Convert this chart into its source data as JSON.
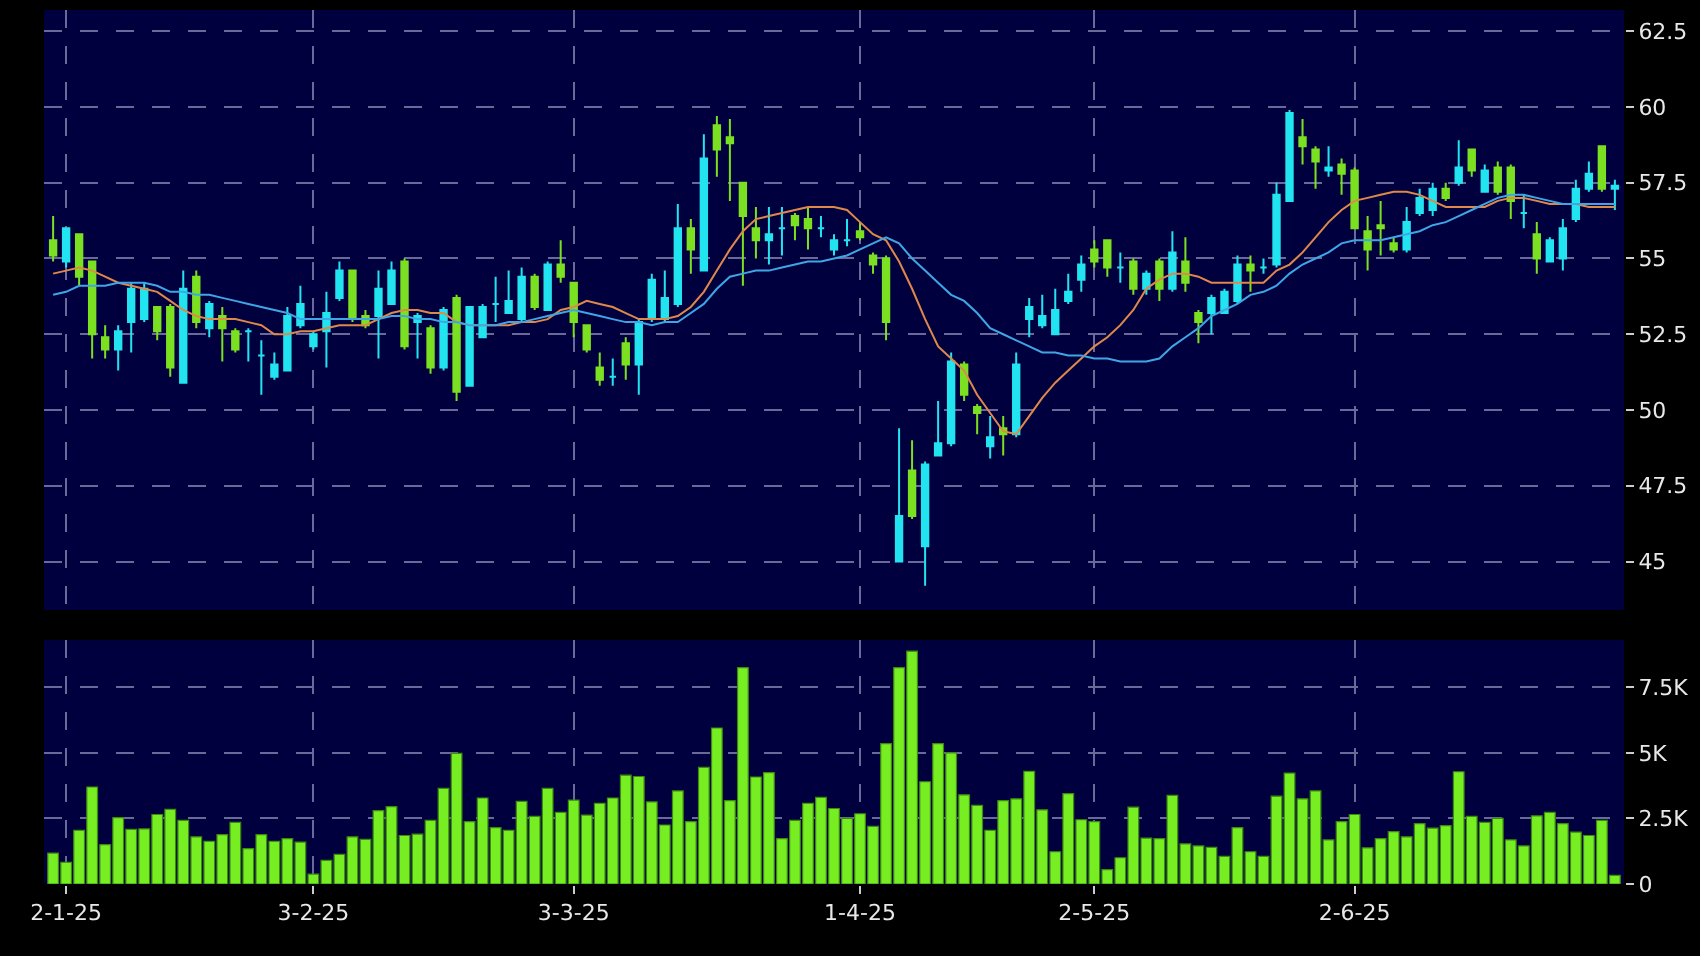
{
  "chart_data": [
    {
      "type": "candlestick",
      "categories": [
        null,
        null,
        null,
        null,
        null,
        null,
        null,
        null,
        null,
        null,
        null,
        null,
        null,
        null,
        null,
        null,
        null,
        null,
        null,
        null,
        null,
        null,
        null,
        null,
        null,
        null,
        null,
        null,
        null,
        null,
        null,
        null,
        null,
        null,
        null,
        null,
        null,
        null,
        null,
        null,
        null,
        null,
        null,
        null,
        null,
        null,
        null,
        null,
        null,
        null,
        null,
        null,
        null,
        null,
        null,
        null,
        null,
        null,
        null,
        null,
        null,
        null,
        null,
        null,
        null,
        null,
        null,
        null,
        null,
        null,
        null,
        null,
        null,
        null,
        null,
        null,
        null,
        null,
        null,
        null,
        null,
        null,
        null,
        null,
        null,
        null,
        null,
        null,
        null,
        null,
        null,
        null,
        null,
        null,
        null,
        null,
        null,
        null,
        null,
        null,
        null,
        null,
        null,
        null,
        null,
        null,
        null,
        null,
        null,
        null,
        null,
        null,
        null,
        null,
        null,
        null,
        null,
        null,
        null,
        null,
        null
      ],
      "ohlc": [
        [
          55.6,
          56.4,
          54.9,
          55.1
        ],
        [
          54.9,
          56.0,
          54.7,
          56.0
        ],
        [
          55.8,
          55.8,
          54.1,
          54.4
        ],
        [
          54.9,
          54.9,
          51.7,
          52.5
        ],
        [
          52.4,
          52.8,
          51.7,
          52.0
        ],
        [
          52.0,
          52.8,
          51.3,
          52.6
        ],
        [
          52.9,
          54.2,
          51.9,
          54.0
        ],
        [
          53.0,
          54.2,
          52.9,
          54.0
        ],
        [
          53.4,
          53.4,
          52.3,
          52.6
        ],
        [
          53.4,
          53.5,
          51.1,
          51.4
        ],
        [
          50.9,
          54.6,
          50.9,
          54.0
        ],
        [
          54.4,
          54.6,
          52.7,
          52.9
        ],
        [
          52.7,
          53.6,
          52.4,
          53.5
        ],
        [
          53.1,
          53.4,
          51.6,
          52.7
        ],
        [
          52.6,
          52.7,
          51.9,
          52.0
        ],
        [
          52.6,
          52.7,
          51.6,
          52.6
        ],
        [
          51.8,
          52.3,
          50.5,
          51.8
        ],
        [
          51.1,
          51.9,
          51.0,
          51.5
        ],
        [
          51.3,
          53.4,
          51.3,
          53.1
        ],
        [
          52.8,
          54.1,
          52.7,
          53.5
        ],
        [
          52.1,
          52.6,
          52.0,
          52.5
        ],
        [
          52.6,
          53.9,
          51.4,
          53.2
        ],
        [
          53.7,
          54.9,
          53.6,
          54.6
        ],
        [
          54.6,
          54.6,
          52.9,
          53.0
        ],
        [
          53.1,
          53.3,
          52.7,
          52.8
        ],
        [
          53.1,
          54.6,
          51.7,
          54.0
        ],
        [
          53.5,
          54.9,
          53.5,
          54.6
        ],
        [
          54.9,
          55.0,
          52.0,
          52.1
        ],
        [
          52.9,
          53.2,
          51.7,
          53.1
        ],
        [
          52.7,
          52.8,
          51.2,
          51.4
        ],
        [
          51.4,
          53.4,
          51.3,
          53.3
        ],
        [
          53.7,
          53.8,
          50.3,
          50.6
        ],
        [
          50.8,
          53.4,
          50.8,
          53.4
        ],
        [
          52.4,
          53.5,
          52.4,
          53.4
        ],
        [
          53.5,
          54.4,
          52.9,
          53.5
        ],
        [
          53.2,
          54.6,
          53.2,
          53.6
        ],
        [
          53.0,
          54.7,
          52.9,
          54.4
        ],
        [
          54.4,
          54.5,
          53.3,
          53.4
        ],
        [
          53.3,
          54.9,
          53.3,
          54.8
        ],
        [
          54.8,
          55.6,
          54.2,
          54.4
        ],
        [
          54.2,
          54.2,
          52.4,
          52.9
        ],
        [
          52.8,
          52.8,
          51.9,
          52.0
        ],
        [
          51.4,
          51.9,
          50.8,
          51.0
        ],
        [
          51.1,
          51.7,
          50.8,
          51.1
        ],
        [
          52.2,
          52.4,
          51.0,
          51.5
        ],
        [
          51.5,
          53.0,
          50.5,
          52.9
        ],
        [
          53.0,
          54.5,
          52.9,
          54.3
        ],
        [
          53.0,
          54.6,
          52.9,
          53.7
        ],
        [
          53.5,
          56.8,
          53.4,
          56.0
        ],
        [
          56.0,
          56.3,
          54.5,
          55.3
        ],
        [
          54.6,
          59.1,
          54.6,
          58.3
        ],
        [
          59.4,
          59.7,
          57.7,
          58.6
        ],
        [
          59.0,
          59.6,
          56.9,
          58.8
        ],
        [
          57.5,
          57.5,
          54.1,
          56.4
        ],
        [
          56.0,
          56.7,
          55.0,
          55.6
        ],
        [
          55.6,
          56.7,
          54.8,
          55.8
        ],
        [
          56.0,
          56.7,
          55.1,
          56.0
        ],
        [
          56.4,
          56.5,
          55.6,
          56.1
        ],
        [
          56.3,
          56.7,
          55.3,
          56.0
        ],
        [
          56.0,
          56.4,
          55.7,
          56.0
        ],
        [
          55.3,
          55.8,
          55.1,
          55.6
        ],
        [
          55.6,
          56.3,
          55.4,
          55.6
        ],
        [
          55.9,
          56.2,
          55.6,
          55.7
        ],
        [
          55.1,
          55.2,
          54.5,
          54.8
        ],
        [
          55.0,
          55.1,
          52.3,
          52.9
        ],
        [
          45.0,
          49.4,
          45.0,
          46.5
        ],
        [
          48.0,
          49.0,
          46.4,
          46.5
        ],
        [
          45.5,
          48.3,
          44.2,
          48.2
        ],
        [
          48.5,
          50.3,
          48.5,
          48.9
        ],
        [
          48.9,
          51.9,
          48.8,
          51.6
        ],
        [
          51.5,
          51.6,
          50.3,
          50.5
        ],
        [
          50.1,
          50.2,
          49.2,
          49.9
        ],
        [
          48.8,
          49.8,
          48.4,
          49.1
        ],
        [
          49.4,
          49.8,
          48.5,
          49.2
        ],
        [
          49.2,
          51.9,
          49.1,
          51.5
        ],
        [
          53.0,
          53.7,
          52.4,
          53.4
        ],
        [
          52.8,
          53.8,
          52.7,
          53.1
        ],
        [
          52.5,
          54.0,
          52.5,
          53.3
        ],
        [
          53.6,
          54.5,
          53.5,
          53.9
        ],
        [
          54.3,
          55.1,
          53.9,
          54.8
        ],
        [
          55.3,
          55.6,
          54.7,
          54.9
        ],
        [
          55.6,
          55.6,
          54.4,
          54.7
        ],
        [
          54.7,
          55.2,
          54.2,
          54.7
        ],
        [
          54.9,
          55.0,
          53.8,
          54.0
        ],
        [
          54.0,
          54.6,
          53.8,
          54.5
        ],
        [
          54.9,
          55.0,
          53.6,
          54.0
        ],
        [
          54.0,
          55.9,
          53.9,
          55.2
        ],
        [
          54.9,
          55.7,
          53.9,
          54.2
        ],
        [
          53.2,
          53.3,
          52.2,
          52.9
        ],
        [
          53.2,
          53.8,
          52.5,
          53.7
        ],
        [
          53.2,
          54.0,
          53.2,
          53.9
        ],
        [
          53.6,
          55.1,
          53.5,
          54.8
        ],
        [
          54.8,
          55.1,
          53.9,
          54.6
        ],
        [
          54.7,
          55.0,
          54.5,
          54.7
        ],
        [
          54.8,
          57.5,
          54.7,
          57.1
        ],
        [
          56.9,
          59.9,
          56.9,
          59.8
        ],
        [
          59.0,
          59.6,
          58.1,
          58.7
        ],
        [
          58.6,
          58.7,
          57.3,
          58.2
        ],
        [
          57.9,
          58.7,
          57.7,
          58.0
        ],
        [
          58.1,
          58.3,
          57.1,
          57.8
        ],
        [
          57.9,
          58.0,
          56.0,
          56.0
        ],
        [
          55.9,
          56.4,
          54.6,
          55.3
        ],
        [
          56.1,
          56.9,
          55.1,
          56.0
        ],
        [
          55.5,
          55.7,
          55.2,
          55.3
        ],
        [
          55.3,
          56.7,
          55.2,
          56.2
        ],
        [
          56.5,
          57.3,
          56.4,
          57.0
        ],
        [
          56.6,
          57.5,
          56.4,
          57.3
        ],
        [
          57.3,
          57.5,
          56.9,
          57.0
        ],
        [
          57.5,
          58.9,
          57.4,
          58.0
        ],
        [
          58.6,
          58.6,
          57.7,
          57.9
        ],
        [
          57.2,
          58.1,
          57.2,
          57.9
        ],
        [
          58.0,
          58.2,
          57.1,
          57.2
        ],
        [
          58.0,
          58.1,
          56.3,
          56.9
        ],
        [
          56.5,
          57.1,
          56.0,
          56.5
        ],
        [
          55.8,
          56.2,
          54.5,
          55.0
        ],
        [
          54.9,
          55.7,
          54.9,
          55.6
        ],
        [
          55.0,
          56.3,
          54.6,
          56.0
        ],
        [
          56.3,
          57.6,
          56.2,
          57.3
        ],
        [
          57.3,
          58.2,
          57.2,
          57.8
        ],
        [
          58.7,
          58.7,
          57.2,
          57.3
        ],
        [
          57.3,
          57.6,
          56.6,
          57.4
        ]
      ],
      "colors": [
        "#7be021",
        "#22e4f0",
        "#7be021",
        "#7be021",
        "#7be021",
        "#22e4f0",
        "#22e4f0",
        "#22e4f0",
        "#7be021",
        "#7be021",
        "#22e4f0",
        "#7be021",
        "#22e4f0",
        "#7be021",
        "#7be021",
        "#22e4f0",
        "#22e4f0",
        "#22e4f0",
        "#22e4f0",
        "#22e4f0",
        "#22e4f0",
        "#22e4f0",
        "#22e4f0",
        "#7be021",
        "#7be021",
        "#22e4f0",
        "#22e4f0",
        "#7be021",
        "#22e4f0",
        "#7be021",
        "#22e4f0",
        "#7be021",
        "#22e4f0",
        "#22e4f0",
        "#22e4f0",
        "#22e4f0",
        "#22e4f0",
        "#7be021",
        "#22e4f0",
        "#7be021",
        "#7be021",
        "#7be021",
        "#7be021",
        "#22e4f0",
        "#7be021",
        "#22e4f0",
        "#22e4f0",
        "#22e4f0",
        "#22e4f0",
        "#7be021",
        "#22e4f0",
        "#7be021",
        "#7be021",
        "#7be021",
        "#7be021",
        "#22e4f0",
        "#22e4f0",
        "#7be021",
        "#7be021",
        "#22e4f0",
        "#22e4f0",
        "#22e4f0",
        "#7be021",
        "#7be021",
        "#7be021",
        "#22e4f0",
        "#7be021",
        "#22e4f0",
        "#22e4f0",
        "#22e4f0",
        "#7be021",
        "#7be021",
        "#22e4f0",
        "#7be021",
        "#22e4f0",
        "#22e4f0",
        "#22e4f0",
        "#22e4f0",
        "#22e4f0",
        "#22e4f0",
        "#7be021",
        "#7be021",
        "#22e4f0",
        "#7be021",
        "#22e4f0",
        "#7be021",
        "#22e4f0",
        "#7be021",
        "#7be021",
        "#22e4f0",
        "#22e4f0",
        "#22e4f0",
        "#7be021",
        "#22e4f0",
        "#22e4f0",
        "#22e4f0",
        "#7be021",
        "#7be021",
        "#22e4f0",
        "#7be021",
        "#7be021",
        "#7be021",
        "#7be021",
        "#7be021",
        "#22e4f0",
        "#22e4f0",
        "#22e4f0",
        "#7be021",
        "#22e4f0",
        "#7be021",
        "#22e4f0",
        "#7be021",
        "#7be021",
        "#22e4f0",
        "#7be021",
        "#22e4f0",
        "#22e4f0",
        "#22e4f0",
        "#22e4f0",
        "#7be021",
        "#22e4f0"
      ],
      "series": [
        {
          "type": "line",
          "color": "#e0884a",
          "values": [
            54.5,
            54.6,
            54.7,
            54.6,
            54.4,
            54.2,
            54.1,
            54.0,
            53.9,
            53.6,
            53.3,
            53.1,
            53.0,
            53.0,
            53.0,
            52.9,
            52.8,
            52.5,
            52.5,
            52.6,
            52.6,
            52.7,
            52.8,
            52.8,
            52.8,
            53.0,
            53.2,
            53.3,
            53.3,
            53.2,
            53.2,
            52.9,
            52.8,
            52.8,
            52.8,
            52.8,
            52.9,
            52.9,
            53.0,
            53.3,
            53.4,
            53.6,
            53.5,
            53.4,
            53.2,
            53.0,
            53.0,
            53.0,
            53.1,
            53.4,
            53.9,
            54.6,
            55.3,
            55.9,
            56.3,
            56.4,
            56.5,
            56.6,
            56.7,
            56.7,
            56.7,
            56.6,
            56.2,
            55.8,
            55.6,
            54.9,
            54.0,
            53.0,
            52.1,
            51.7,
            51.3,
            50.5,
            49.9,
            49.3,
            49.2,
            49.8,
            50.4,
            50.9,
            51.3,
            51.7,
            52.1,
            52.4,
            52.8,
            53.3,
            54.0,
            54.3,
            54.5,
            54.5,
            54.4,
            54.2,
            54.2,
            54.2,
            54.2,
            54.2,
            54.6,
            54.8,
            55.2,
            55.7,
            56.2,
            56.6,
            56.9,
            57.0,
            57.1,
            57.2,
            57.2,
            57.1,
            56.9,
            56.7,
            56.7,
            56.7,
            56.7,
            56.9,
            57.0,
            57.0,
            56.9,
            56.8,
            56.8,
            56.8,
            56.7,
            56.7,
            56.7
          ]
        },
        {
          "type": "line",
          "color": "#3fa6e6",
          "values": [
            53.8,
            53.9,
            54.1,
            54.1,
            54.1,
            54.2,
            54.2,
            54.2,
            54.1,
            53.9,
            53.9,
            53.8,
            53.8,
            53.7,
            53.6,
            53.5,
            53.4,
            53.3,
            53.2,
            53.0,
            53.0,
            53.0,
            53.0,
            53.0,
            53.0,
            53.0,
            53.1,
            53.1,
            53.0,
            53.0,
            52.9,
            52.9,
            52.8,
            52.8,
            52.8,
            52.9,
            52.9,
            53.0,
            53.1,
            53.2,
            53.3,
            53.2,
            53.1,
            53.0,
            52.9,
            52.9,
            52.8,
            52.9,
            52.9,
            53.2,
            53.5,
            54.0,
            54.4,
            54.5,
            54.6,
            54.6,
            54.7,
            54.8,
            54.9,
            54.9,
            55.0,
            55.1,
            55.3,
            55.5,
            55.7,
            55.5,
            55.0,
            54.6,
            54.2,
            53.8,
            53.6,
            53.2,
            52.7,
            52.5,
            52.3,
            52.1,
            51.9,
            51.9,
            51.8,
            51.8,
            51.7,
            51.7,
            51.6,
            51.6,
            51.6,
            51.7,
            52.1,
            52.4,
            52.7,
            53.1,
            53.3,
            53.5,
            53.8,
            53.9,
            54.1,
            54.5,
            54.8,
            55.0,
            55.2,
            55.5,
            55.6,
            55.6,
            55.6,
            55.7,
            55.8,
            55.9,
            56.1,
            56.2,
            56.4,
            56.6,
            56.8,
            57.0,
            57.1,
            57.1,
            57.0,
            56.9,
            56.8,
            56.8,
            56.8,
            56.8,
            56.8
          ]
        }
      ],
      "ylim": [
        43.4,
        63.2
      ],
      "yticks": [
        45,
        47.5,
        50,
        52.5,
        55,
        57.5,
        60,
        62.5
      ],
      "grid": true,
      "tick_labels": "y"
    },
    {
      "type": "bar",
      "categories": [
        null,
        "2-1-25",
        null,
        null,
        null,
        null,
        null,
        null,
        null,
        null,
        null,
        null,
        null,
        null,
        null,
        null,
        null,
        null,
        null,
        null,
        "3-2-25",
        null,
        null,
        null,
        null,
        null,
        null,
        null,
        null,
        null,
        null,
        null,
        null,
        null,
        null,
        null,
        null,
        null,
        null,
        null,
        "3-3-25",
        null,
        null,
        null,
        null,
        null,
        null,
        null,
        null,
        null,
        null,
        null,
        null,
        null,
        null,
        null,
        null,
        null,
        null,
        null,
        null,
        null,
        "1-4-25",
        null,
        null,
        null,
        null,
        null,
        null,
        null,
        null,
        null,
        null,
        null,
        null,
        null,
        null,
        null,
        null,
        null,
        "2-5-25",
        null,
        null,
        null,
        null,
        null,
        null,
        null,
        null,
        null,
        null,
        null,
        null,
        null,
        null,
        null,
        null,
        null,
        null,
        null,
        "2-6-25",
        null,
        null,
        null,
        null,
        null,
        null,
        null,
        null,
        null,
        null,
        null,
        null,
        null,
        null,
        null,
        null,
        null,
        null,
        null,
        null
      ],
      "values": [
        1180,
        830,
        2050,
        3700,
        1500,
        2530,
        2080,
        2100,
        2650,
        2850,
        2430,
        1800,
        1630,
        1880,
        2350,
        1350,
        1880,
        1630,
        1730,
        1600,
        380,
        900,
        1130,
        1800,
        1700,
        2800,
        2950,
        1850,
        1900,
        2430,
        3650,
        4980,
        2380,
        3280,
        2150,
        2050,
        3150,
        2580,
        3650,
        2730,
        3200,
        2630,
        3080,
        3280,
        4150,
        4100,
        3130,
        2250,
        3550,
        2380,
        4450,
        5950,
        3180,
        8250,
        4080,
        4250,
        1730,
        2430,
        3080,
        3300,
        2880,
        2500,
        2680,
        2200,
        5350,
        8250,
        8880,
        3900,
        5350,
        5000,
        3400,
        3000,
        2050,
        3180,
        3250,
        4300,
        2830,
        1230,
        3450,
        2450,
        2380,
        550,
        1000,
        2930,
        1750,
        1730,
        3380,
        1530,
        1450,
        1400,
        1050,
        2150,
        1230,
        1050,
        3350,
        4230,
        3250,
        3550,
        1680,
        2380,
        2650,
        1380,
        1730,
        2000,
        1800,
        2300,
        2130,
        2230,
        4280,
        2580,
        2350,
        2500,
        1680,
        1450,
        2600,
        2730,
        2300,
        1980,
        1850,
        2430,
        330
      ],
      "color": "#77ee22",
      "ylim": [
        0,
        9300
      ],
      "yticks": [
        0,
        {
          "value": 2500,
          "label": "2.5K"
        },
        {
          "value": 5000,
          "label": "5K"
        },
        {
          "value": 7500,
          "label": "7.5K"
        }
      ],
      "grid": true
    }
  ]
}
